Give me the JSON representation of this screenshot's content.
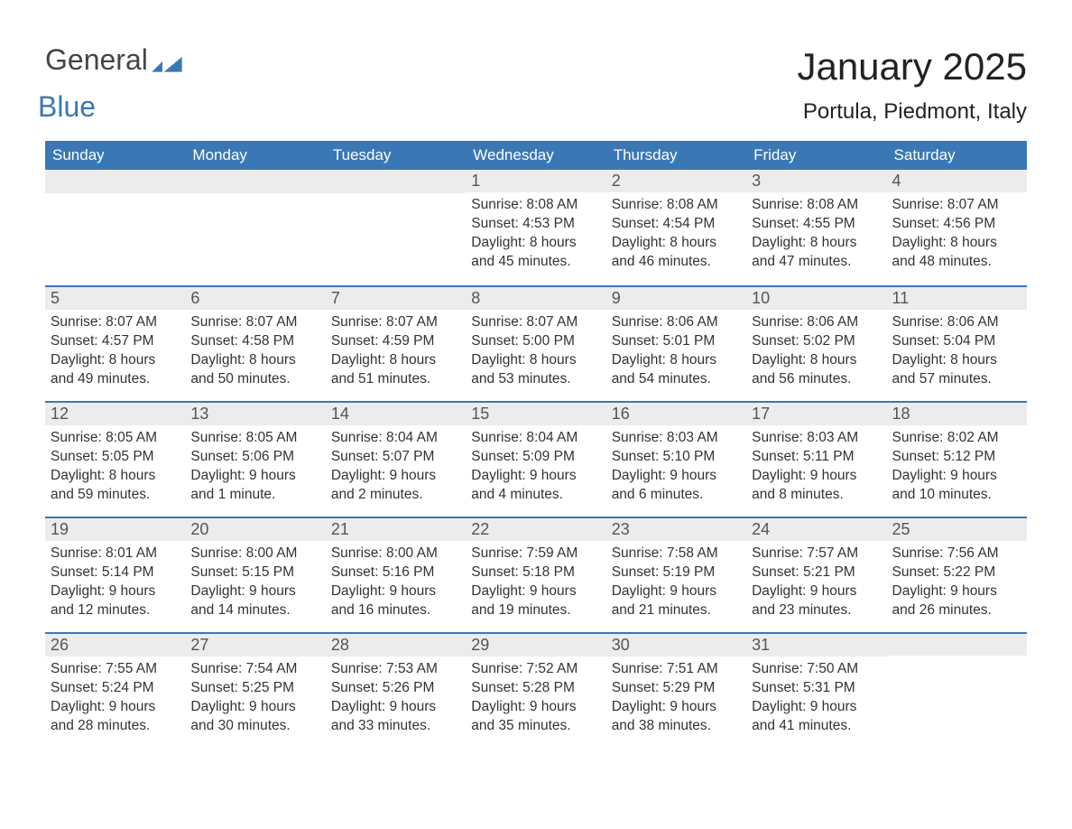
{
  "logo": {
    "line1": "General",
    "line2": "Blue"
  },
  "title": "January 2025",
  "location": "Portula, Piedmont, Italy",
  "colors": {
    "header_bg": "#3a78b5",
    "header_text": "#ffffff",
    "day_bg": "#ececec",
    "row_border": "#3a78b5",
    "body_text": "#333333",
    "title_text": "#222222",
    "logo_gray": "#444444",
    "logo_blue": "#3a78b5",
    "background": "#ffffff"
  },
  "typography": {
    "title_fontsize": 42,
    "location_fontsize": 24,
    "header_fontsize": 17,
    "daynum_fontsize": 18,
    "body_fontsize": 15.5,
    "logo_fontsize": 32
  },
  "weekdays": [
    "Sunday",
    "Monday",
    "Tuesday",
    "Wednesday",
    "Thursday",
    "Friday",
    "Saturday"
  ],
  "leading_blanks": 3,
  "days": [
    {
      "n": "1",
      "sunrise": "Sunrise: 8:08 AM",
      "sunset": "Sunset: 4:53 PM",
      "d1": "Daylight: 8 hours",
      "d2": "and 45 minutes."
    },
    {
      "n": "2",
      "sunrise": "Sunrise: 8:08 AM",
      "sunset": "Sunset: 4:54 PM",
      "d1": "Daylight: 8 hours",
      "d2": "and 46 minutes."
    },
    {
      "n": "3",
      "sunrise": "Sunrise: 8:08 AM",
      "sunset": "Sunset: 4:55 PM",
      "d1": "Daylight: 8 hours",
      "d2": "and 47 minutes."
    },
    {
      "n": "4",
      "sunrise": "Sunrise: 8:07 AM",
      "sunset": "Sunset: 4:56 PM",
      "d1": "Daylight: 8 hours",
      "d2": "and 48 minutes."
    },
    {
      "n": "5",
      "sunrise": "Sunrise: 8:07 AM",
      "sunset": "Sunset: 4:57 PM",
      "d1": "Daylight: 8 hours",
      "d2": "and 49 minutes."
    },
    {
      "n": "6",
      "sunrise": "Sunrise: 8:07 AM",
      "sunset": "Sunset: 4:58 PM",
      "d1": "Daylight: 8 hours",
      "d2": "and 50 minutes."
    },
    {
      "n": "7",
      "sunrise": "Sunrise: 8:07 AM",
      "sunset": "Sunset: 4:59 PM",
      "d1": "Daylight: 8 hours",
      "d2": "and 51 minutes."
    },
    {
      "n": "8",
      "sunrise": "Sunrise: 8:07 AM",
      "sunset": "Sunset: 5:00 PM",
      "d1": "Daylight: 8 hours",
      "d2": "and 53 minutes."
    },
    {
      "n": "9",
      "sunrise": "Sunrise: 8:06 AM",
      "sunset": "Sunset: 5:01 PM",
      "d1": "Daylight: 8 hours",
      "d2": "and 54 minutes."
    },
    {
      "n": "10",
      "sunrise": "Sunrise: 8:06 AM",
      "sunset": "Sunset: 5:02 PM",
      "d1": "Daylight: 8 hours",
      "d2": "and 56 minutes."
    },
    {
      "n": "11",
      "sunrise": "Sunrise: 8:06 AM",
      "sunset": "Sunset: 5:04 PM",
      "d1": "Daylight: 8 hours",
      "d2": "and 57 minutes."
    },
    {
      "n": "12",
      "sunrise": "Sunrise: 8:05 AM",
      "sunset": "Sunset: 5:05 PM",
      "d1": "Daylight: 8 hours",
      "d2": "and 59 minutes."
    },
    {
      "n": "13",
      "sunrise": "Sunrise: 8:05 AM",
      "sunset": "Sunset: 5:06 PM",
      "d1": "Daylight: 9 hours",
      "d2": "and 1 minute."
    },
    {
      "n": "14",
      "sunrise": "Sunrise: 8:04 AM",
      "sunset": "Sunset: 5:07 PM",
      "d1": "Daylight: 9 hours",
      "d2": "and 2 minutes."
    },
    {
      "n": "15",
      "sunrise": "Sunrise: 8:04 AM",
      "sunset": "Sunset: 5:09 PM",
      "d1": "Daylight: 9 hours",
      "d2": "and 4 minutes."
    },
    {
      "n": "16",
      "sunrise": "Sunrise: 8:03 AM",
      "sunset": "Sunset: 5:10 PM",
      "d1": "Daylight: 9 hours",
      "d2": "and 6 minutes."
    },
    {
      "n": "17",
      "sunrise": "Sunrise: 8:03 AM",
      "sunset": "Sunset: 5:11 PM",
      "d1": "Daylight: 9 hours",
      "d2": "and 8 minutes."
    },
    {
      "n": "18",
      "sunrise": "Sunrise: 8:02 AM",
      "sunset": "Sunset: 5:12 PM",
      "d1": "Daylight: 9 hours",
      "d2": "and 10 minutes."
    },
    {
      "n": "19",
      "sunrise": "Sunrise: 8:01 AM",
      "sunset": "Sunset: 5:14 PM",
      "d1": "Daylight: 9 hours",
      "d2": "and 12 minutes."
    },
    {
      "n": "20",
      "sunrise": "Sunrise: 8:00 AM",
      "sunset": "Sunset: 5:15 PM",
      "d1": "Daylight: 9 hours",
      "d2": "and 14 minutes."
    },
    {
      "n": "21",
      "sunrise": "Sunrise: 8:00 AM",
      "sunset": "Sunset: 5:16 PM",
      "d1": "Daylight: 9 hours",
      "d2": "and 16 minutes."
    },
    {
      "n": "22",
      "sunrise": "Sunrise: 7:59 AM",
      "sunset": "Sunset: 5:18 PM",
      "d1": "Daylight: 9 hours",
      "d2": "and 19 minutes."
    },
    {
      "n": "23",
      "sunrise": "Sunrise: 7:58 AM",
      "sunset": "Sunset: 5:19 PM",
      "d1": "Daylight: 9 hours",
      "d2": "and 21 minutes."
    },
    {
      "n": "24",
      "sunrise": "Sunrise: 7:57 AM",
      "sunset": "Sunset: 5:21 PM",
      "d1": "Daylight: 9 hours",
      "d2": "and 23 minutes."
    },
    {
      "n": "25",
      "sunrise": "Sunrise: 7:56 AM",
      "sunset": "Sunset: 5:22 PM",
      "d1": "Daylight: 9 hours",
      "d2": "and 26 minutes."
    },
    {
      "n": "26",
      "sunrise": "Sunrise: 7:55 AM",
      "sunset": "Sunset: 5:24 PM",
      "d1": "Daylight: 9 hours",
      "d2": "and 28 minutes."
    },
    {
      "n": "27",
      "sunrise": "Sunrise: 7:54 AM",
      "sunset": "Sunset: 5:25 PM",
      "d1": "Daylight: 9 hours",
      "d2": "and 30 minutes."
    },
    {
      "n": "28",
      "sunrise": "Sunrise: 7:53 AM",
      "sunset": "Sunset: 5:26 PM",
      "d1": "Daylight: 9 hours",
      "d2": "and 33 minutes."
    },
    {
      "n": "29",
      "sunrise": "Sunrise: 7:52 AM",
      "sunset": "Sunset: 5:28 PM",
      "d1": "Daylight: 9 hours",
      "d2": "and 35 minutes."
    },
    {
      "n": "30",
      "sunrise": "Sunrise: 7:51 AM",
      "sunset": "Sunset: 5:29 PM",
      "d1": "Daylight: 9 hours",
      "d2": "and 38 minutes."
    },
    {
      "n": "31",
      "sunrise": "Sunrise: 7:50 AM",
      "sunset": "Sunset: 5:31 PM",
      "d1": "Daylight: 9 hours",
      "d2": "and 41 minutes."
    }
  ]
}
